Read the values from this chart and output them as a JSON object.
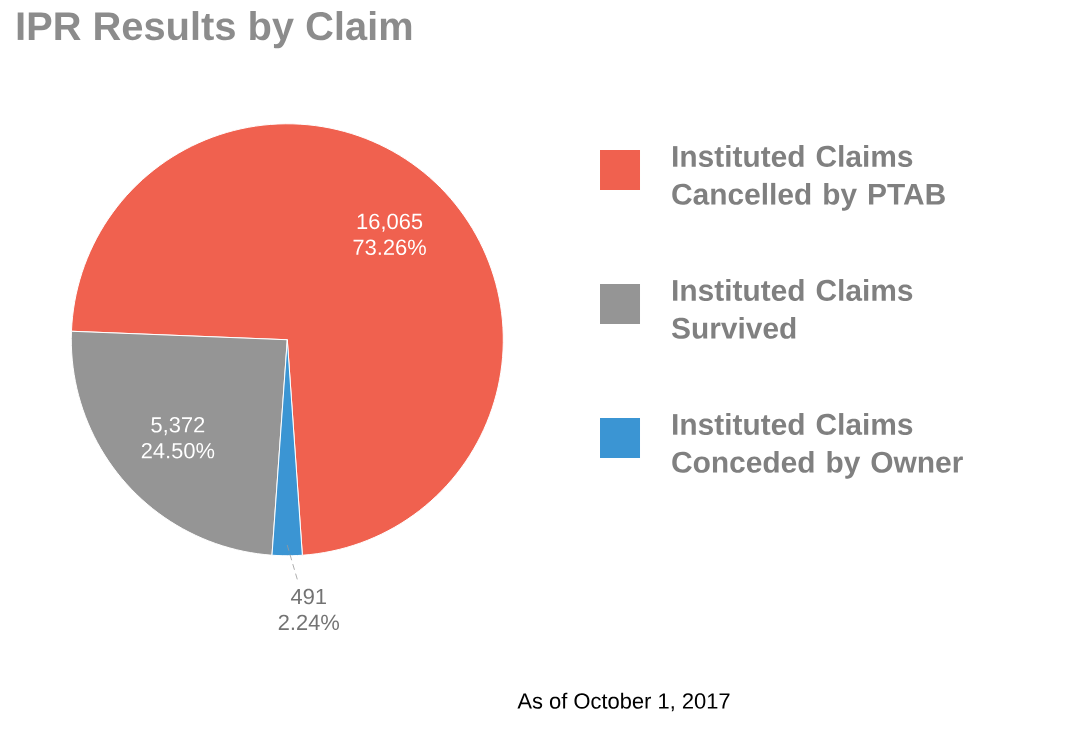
{
  "chart_data": {
    "type": "pie",
    "title": "IPR Results by Claim",
    "categories": [
      "Instituted Claims Cancelled by PTAB",
      "Instituted Claims Survived",
      "Instituted Claims Conceded by Owner"
    ],
    "values": [
      16065,
      5372,
      491
    ],
    "colors": [
      "#f0614f",
      "#959595",
      "#3b95d3"
    ],
    "value_labels": [
      "16,065",
      "5,372",
      "491"
    ],
    "legend": "right",
    "annotations": [
      "73.26%",
      "24.50%",
      "2.24%",
      "As of October 1, 2017"
    ]
  }
}
